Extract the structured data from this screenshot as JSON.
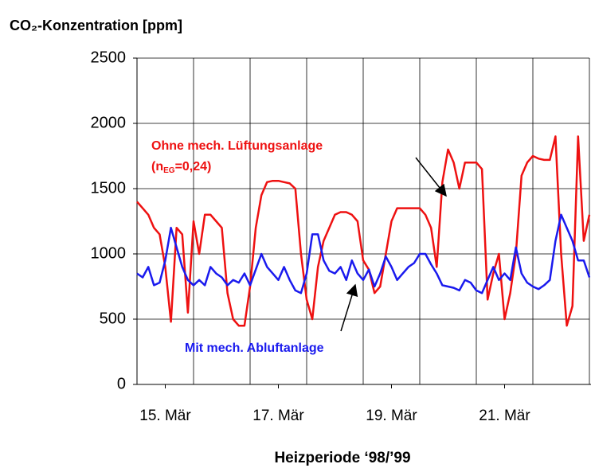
{
  "chart_data": {
    "type": "line",
    "title": "CO₂-Konzentration [ppm]",
    "xlabel": "Heizperiode ‘98/’99",
    "annotations": {
      "red": [
        "Ohne mech. Lüftungsanlage"
      ],
      "red_sub": [
        "(n",
        "EG",
        "=0,24)"
      ],
      "blue": [
        "Mit mech. Abluftanlage"
      ]
    },
    "x": [
      15.0,
      15.1,
      15.2,
      15.3,
      15.4,
      15.5,
      15.6,
      15.7,
      15.8,
      15.9,
      16.0,
      16.1,
      16.2,
      16.3,
      16.4,
      16.5,
      16.6,
      16.7,
      16.8,
      16.9,
      17.0,
      17.1,
      17.2,
      17.3,
      17.4,
      17.5,
      17.6,
      17.7,
      17.8,
      17.9,
      18.0,
      18.1,
      18.2,
      18.3,
      18.4,
      18.5,
      18.6,
      18.7,
      18.8,
      18.9,
      19.0,
      19.1,
      19.2,
      19.3,
      19.4,
      19.5,
      19.6,
      19.7,
      19.8,
      19.9,
      20.0,
      20.1,
      20.2,
      20.3,
      20.4,
      20.5,
      20.6,
      20.7,
      20.8,
      20.9,
      21.0,
      21.1,
      21.2,
      21.3,
      21.4,
      21.5,
      21.6,
      21.7,
      21.8,
      21.9,
      22.0,
      22.1,
      22.2,
      22.3,
      22.4,
      22.5,
      22.6,
      22.7,
      22.8,
      22.9,
      23.0
    ],
    "series": [
      {
        "name": "Ohne mech. Lüftungsanlage",
        "color": "#ee1111",
        "values": [
          1400,
          1350,
          1300,
          1200,
          1150,
          900,
          480,
          1200,
          1150,
          550,
          1250,
          1000,
          1300,
          1300,
          1250,
          1200,
          700,
          500,
          450,
          450,
          750,
          1200,
          1450,
          1550,
          1560,
          1560,
          1550,
          1540,
          1500,
          1000,
          650,
          500,
          900,
          1100,
          1200,
          1300,
          1320,
          1320,
          1300,
          1250,
          950,
          880,
          700,
          750,
          1000,
          1250,
          1350,
          1350,
          1350,
          1350,
          1350,
          1300,
          1200,
          900,
          1550,
          1800,
          1700,
          1500,
          1700,
          1700,
          1700,
          1650,
          650,
          850,
          1000,
          500,
          700,
          1000,
          1600,
          1700,
          1750,
          1730,
          1720,
          1720,
          1900,
          1000,
          450,
          600,
          1900,
          1100,
          1300
        ]
      },
      {
        "name": "Mit mech. Abluftanlage",
        "color": "#1a1aee",
        "values": [
          850,
          820,
          900,
          760,
          780,
          950,
          1200,
          1050,
          900,
          800,
          760,
          800,
          760,
          900,
          850,
          820,
          760,
          800,
          780,
          850,
          760,
          880,
          1000,
          900,
          850,
          800,
          900,
          800,
          720,
          700,
          850,
          1150,
          1150,
          950,
          870,
          850,
          900,
          800,
          950,
          850,
          800,
          880,
          750,
          850,
          980,
          900,
          800,
          850,
          900,
          930,
          1000,
          1000,
          920,
          850,
          760,
          750,
          740,
          720,
          800,
          780,
          720,
          700,
          800,
          900,
          800,
          850,
          800,
          1050,
          850,
          780,
          750,
          730,
          760,
          800,
          1100,
          1300,
          1200,
          1100,
          950,
          950,
          820
        ]
      }
    ],
    "xlim": [
      15,
      23
    ],
    "xticks": [
      {
        "value": 15.5,
        "label": "15. Mär"
      },
      {
        "value": 17.5,
        "label": "17. Mär"
      },
      {
        "value": 19.5,
        "label": "19. Mär"
      },
      {
        "value": 21.5,
        "label": "21. Mär"
      }
    ],
    "xgridlines": [
      16,
      17,
      18,
      19,
      20,
      21,
      22,
      23
    ],
    "ylim": [
      0,
      2500
    ],
    "yticks": [
      0,
      500,
      1000,
      1500,
      2000,
      2500
    ],
    "grid": true
  }
}
